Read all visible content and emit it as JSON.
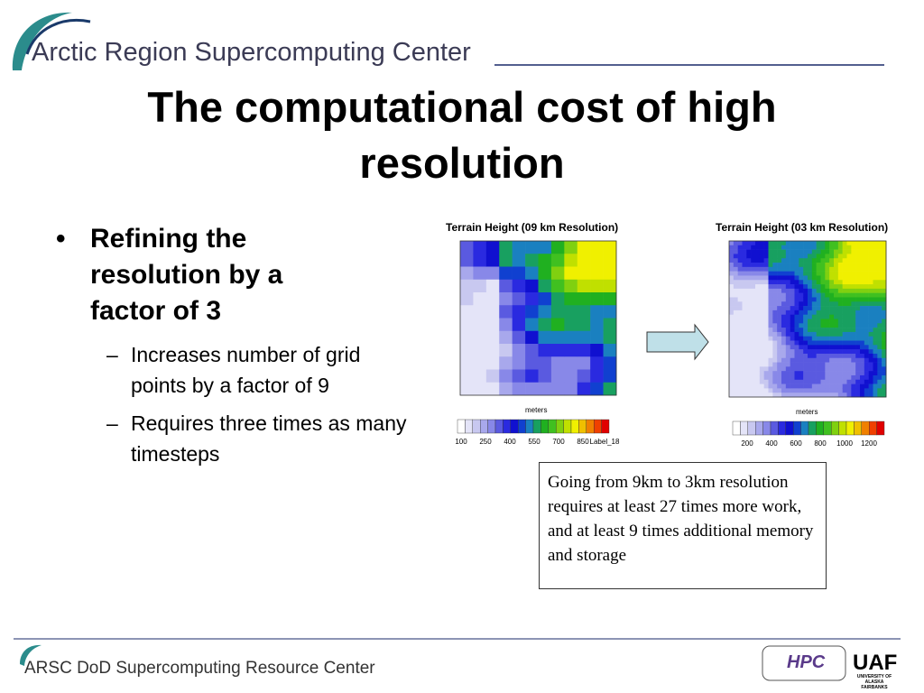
{
  "header": {
    "org": "Arctic Region Supercomputing Center"
  },
  "title": "The computational cost of high resolution",
  "bullets": [
    {
      "text": "Refining the resolution by a factor of 3",
      "sub": [
        "Increases number of grid points by a factor of 9",
        "Requires three times as many timesteps"
      ]
    }
  ],
  "figures": [
    {
      "title": "Terrain Height (09 km Resolution)",
      "unit": "meters",
      "scale_labels": [
        100,
        250,
        400,
        550,
        700,
        850,
        "Label_18"
      ]
    },
    {
      "title": "Terrain Height (03 km Resolution)",
      "unit": "meters",
      "scale_labels": [
        200,
        400,
        600,
        800,
        1000,
        1200
      ]
    }
  ],
  "note": "Going from 9km to 3km resolution requires at least 27 times more work, and at least 9 times additional memory and storage",
  "footer": {
    "org": "ARSC DoD Supercomputing Resource Center",
    "logo_left": "HPC",
    "logo_right": "UAF",
    "logo_right_sub": "UNIVERSITY OF ALASKA FAIRBANKS"
  }
}
